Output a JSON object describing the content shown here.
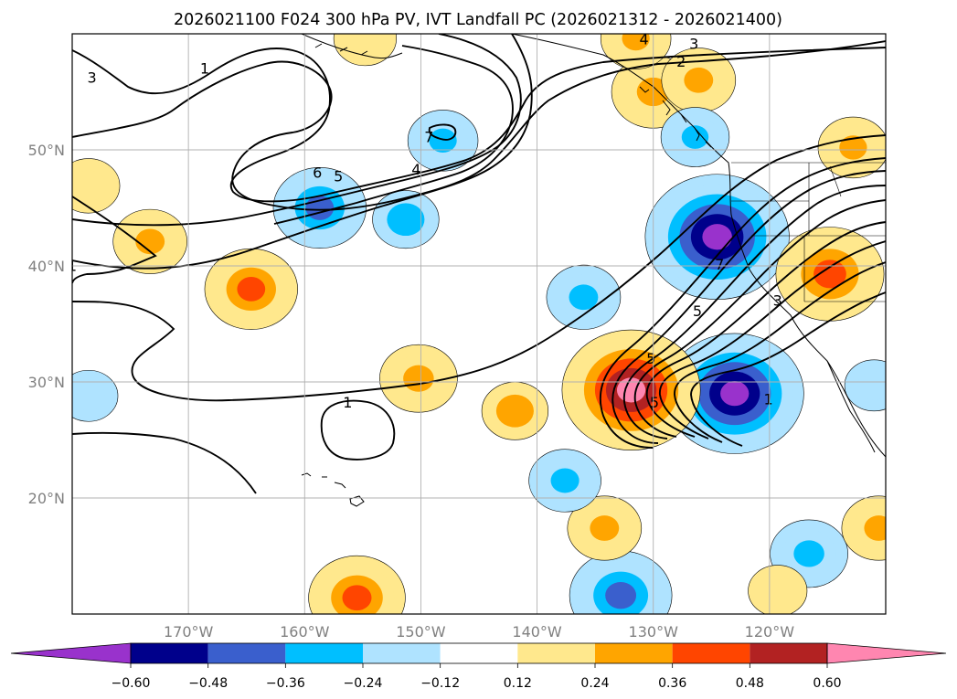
{
  "title": "2026021100 F024 300 hPa PV, IVT Landfall PC (2026021312 - 2026021400)",
  "map": {
    "lon_range": [
      -180,
      -110
    ],
    "lat_range": [
      10,
      60
    ],
    "lat_ticks": [
      {
        "value": 50,
        "label": "50°N"
      },
      {
        "value": 40,
        "label": "40°N"
      },
      {
        "value": 30,
        "label": "30°N"
      },
      {
        "value": 20,
        "label": "20°N"
      }
    ],
    "lon_ticks": [
      {
        "value": -170,
        "label": "170°W"
      },
      {
        "value": -160,
        "label": "160°W"
      },
      {
        "value": -150,
        "label": "150°W"
      },
      {
        "value": -140,
        "label": "140°W"
      },
      {
        "value": -130,
        "label": "130°W"
      },
      {
        "value": -120,
        "label": "120°W"
      }
    ],
    "contour_labels": [
      {
        "text": "1",
        "lon": -168.6,
        "lat": 56.9
      },
      {
        "text": "3",
        "lon": -178.3,
        "lat": 56.1
      },
      {
        "text": "7",
        "lon": -149.3,
        "lat": 51.0
      },
      {
        "text": "6",
        "lon": -158.9,
        "lat": 47.9
      },
      {
        "text": "5",
        "lon": -157.1,
        "lat": 47.6
      },
      {
        "text": "4",
        "lon": -150.4,
        "lat": 48.2
      },
      {
        "text": "4",
        "lon": -130.8,
        "lat": 59.4
      },
      {
        "text": "3",
        "lon": -126.5,
        "lat": 59.0
      },
      {
        "text": "2",
        "lon": -127.6,
        "lat": 57.5
      },
      {
        "text": "1",
        "lon": -156.3,
        "lat": 28.1
      },
      {
        "text": "5",
        "lon": -130.2,
        "lat": 31.9
      },
      {
        "text": "5",
        "lon": -129.9,
        "lat": 28.1
      },
      {
        "text": "5",
        "lon": -126.2,
        "lat": 36.0
      },
      {
        "text": "7",
        "lon": -124.3,
        "lat": 40.0
      },
      {
        "text": "3",
        "lon": -119.3,
        "lat": 36.9
      },
      {
        "text": "1",
        "lon": -120.1,
        "lat": 28.4
      },
      {
        "text": "1",
        "lon": -180,
        "lat": 39.9
      }
    ],
    "pv_anomaly_blobs": [
      {
        "lon": -124.5,
        "lat": 42.5,
        "value": -0.65
      },
      {
        "lon": -123.0,
        "lat": 29.0,
        "value": -0.62
      },
      {
        "lon": -131.9,
        "lat": 29.3,
        "value": 0.62
      },
      {
        "lon": -114.8,
        "lat": 39.3,
        "value": 0.46
      },
      {
        "lon": -130.0,
        "lat": 55.0,
        "value": 0.33
      },
      {
        "lon": -164.6,
        "lat": 38.0,
        "value": 0.38
      },
      {
        "lon": -155.5,
        "lat": 11.4,
        "value": 0.4
      },
      {
        "lon": -158.7,
        "lat": 45.0,
        "value": -0.38
      },
      {
        "lon": -132.8,
        "lat": 11.6,
        "value": -0.43
      },
      {
        "lon": -126.1,
        "lat": 56.0,
        "value": 0.28
      },
      {
        "lon": -173.3,
        "lat": 42.1,
        "value": 0.28
      },
      {
        "lon": -150.2,
        "lat": 30.3,
        "value": 0.3
      },
      {
        "lon": -136.0,
        "lat": 37.3,
        "value": -0.28
      },
      {
        "lon": -116.6,
        "lat": 15.2,
        "value": -0.3
      },
      {
        "lon": -134.2,
        "lat": 17.4,
        "value": 0.28
      },
      {
        "lon": -148.1,
        "lat": 50.8,
        "value": -0.26
      },
      {
        "lon": -137.6,
        "lat": 21.5,
        "value": -0.27
      },
      {
        "lon": -126.4,
        "lat": 51.1,
        "value": -0.25
      },
      {
        "lon": -151.3,
        "lat": 44.0,
        "value": -0.24
      },
      {
        "lon": -112.8,
        "lat": 50.2,
        "value": 0.26
      },
      {
        "lon": -131.5,
        "lat": 59.6,
        "value": 0.26
      },
      {
        "lon": -110.6,
        "lat": 17.4,
        "value": 0.28
      },
      {
        "lon": -154.8,
        "lat": 59.6,
        "value": 0.22
      },
      {
        "lon": -178.6,
        "lat": 28.8,
        "value": -0.2
      },
      {
        "lon": -111.0,
        "lat": 29.7,
        "value": -0.2
      },
      {
        "lon": -119.3,
        "lat": 12.0,
        "value": 0.2
      },
      {
        "lon": -141.9,
        "lat": 27.5,
        "value": 0.24
      },
      {
        "lon": -178.6,
        "lat": 46.9,
        "value": 0.22
      }
    ]
  },
  "colorbar": {
    "levels": [
      -0.6,
      -0.48,
      -0.36,
      -0.24,
      -0.12,
      0.12,
      0.24,
      0.36,
      0.48,
      0.6
    ],
    "tick_labels": [
      "−0.60",
      "−0.48",
      "−0.36",
      "−0.24",
      "−0.12",
      "0.12",
      "0.24",
      "0.36",
      "0.48",
      "0.60"
    ],
    "colors": [
      "#9932cc",
      "#00008b",
      "#3a5fcd",
      "#00bfff",
      "#afe3ff",
      "#ffffff",
      "#ffe88d",
      "#ffa500",
      "#ff4500",
      "#b22222",
      "#ff86b0"
    ]
  }
}
